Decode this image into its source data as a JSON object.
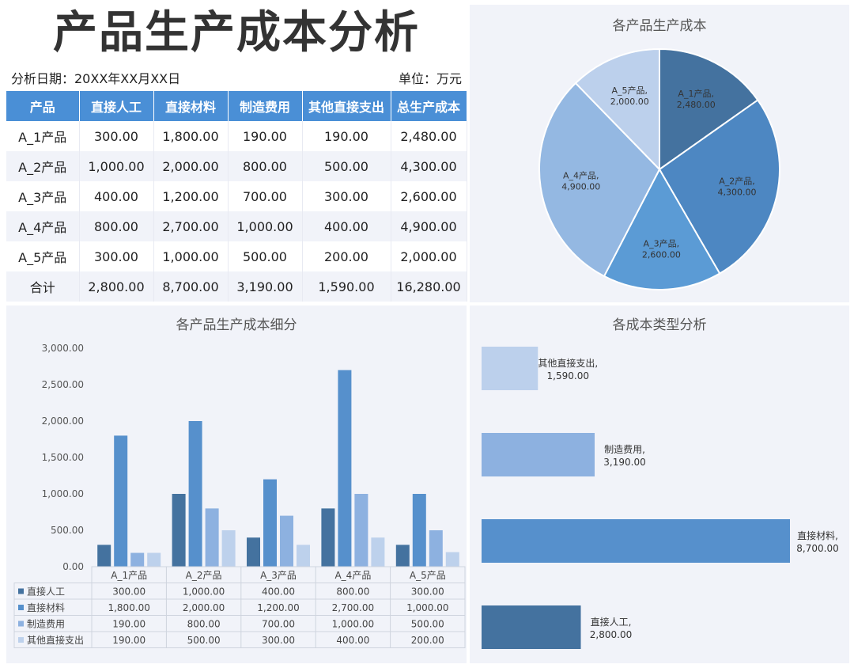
{
  "header": {
    "title": "产品生产成本分析",
    "date_label": "分析日期：20XX年XX月XX日",
    "unit_label": "单位：万元"
  },
  "table": {
    "columns": [
      "产品",
      "直接人工",
      "直接材料",
      "制造费用",
      "其他直接支出",
      "总生产成本"
    ],
    "rows": [
      [
        "A_1产品",
        "300.00",
        "1,800.00",
        "190.00",
        "190.00",
        "2,480.00"
      ],
      [
        "A_2产品",
        "1,000.00",
        "2,000.00",
        "800.00",
        "500.00",
        "4,300.00"
      ],
      [
        "A_3产品",
        "400.00",
        "1,200.00",
        "700.00",
        "300.00",
        "2,600.00"
      ],
      [
        "A_4产品",
        "800.00",
        "2,700.00",
        "1,000.00",
        "400.00",
        "4,900.00"
      ],
      [
        "A_5产品",
        "300.00",
        "1,000.00",
        "500.00",
        "200.00",
        "2,000.00"
      ]
    ],
    "total": [
      "合计",
      "2,800.00",
      "8,700.00",
      "3,190.00",
      "1,590.00",
      "16,280.00"
    ]
  },
  "chart_data": [
    {
      "type": "pie",
      "title": "各产品生产成本",
      "categories": [
        "A_1产品",
        "A_2产品",
        "A_3产品",
        "A_4产品",
        "A_5产品"
      ],
      "values": [
        2480,
        4300,
        2600,
        4900,
        2000
      ],
      "value_labels": [
        "2,480.00",
        "4,300.00",
        "2,600.00",
        "4,900.00",
        "2,000.00"
      ],
      "colors": [
        "#44729f",
        "#4d87c2",
        "#5b9bd5",
        "#94b8e2",
        "#bcd0ec"
      ]
    },
    {
      "type": "bar",
      "title": "各产品生产成本细分",
      "categories": [
        "A_1产品",
        "A_2产品",
        "A_3产品",
        "A_4产品",
        "A_5产品"
      ],
      "ylim": [
        0,
        3000
      ],
      "yticks": [
        "0.00",
        "500.00",
        "1,000.00",
        "1,500.00",
        "2,000.00",
        "2,500.00",
        "3,000.00"
      ],
      "series": [
        {
          "name": "直接人工",
          "values": [
            300,
            1000,
            400,
            800,
            300
          ],
          "labels": [
            "300.00",
            "1,000.00",
            "400.00",
            "800.00",
            "300.00"
          ],
          "color": "#44729f"
        },
        {
          "name": "直接材料",
          "values": [
            1800,
            2000,
            1200,
            2700,
            1000
          ],
          "labels": [
            "1,800.00",
            "2,000.00",
            "1,200.00",
            "2,700.00",
            "1,000.00"
          ],
          "color": "#5690cc"
        },
        {
          "name": "制造费用",
          "values": [
            190,
            800,
            700,
            1000,
            500
          ],
          "labels": [
            "190.00",
            "800.00",
            "700.00",
            "1,000.00",
            "500.00"
          ],
          "color": "#8db1e0"
        },
        {
          "name": "其他直接支出",
          "values": [
            190,
            500,
            300,
            400,
            200
          ],
          "labels": [
            "190.00",
            "500.00",
            "300.00",
            "400.00",
            "200.00"
          ],
          "color": "#bdd1ec"
        }
      ]
    },
    {
      "type": "bar",
      "orientation": "horizontal",
      "title": "各成本类型分析",
      "categories": [
        "其他直接支出",
        "制造费用",
        "直接材料",
        "直接人工"
      ],
      "values": [
        1590,
        3190,
        8700,
        2800
      ],
      "value_labels": [
        "1,590.00",
        "3,190.00",
        "8,700.00",
        "2,800.00"
      ],
      "colors": [
        "#bcd0ec",
        "#8db1e0",
        "#5690cc",
        "#44729f"
      ]
    }
  ]
}
